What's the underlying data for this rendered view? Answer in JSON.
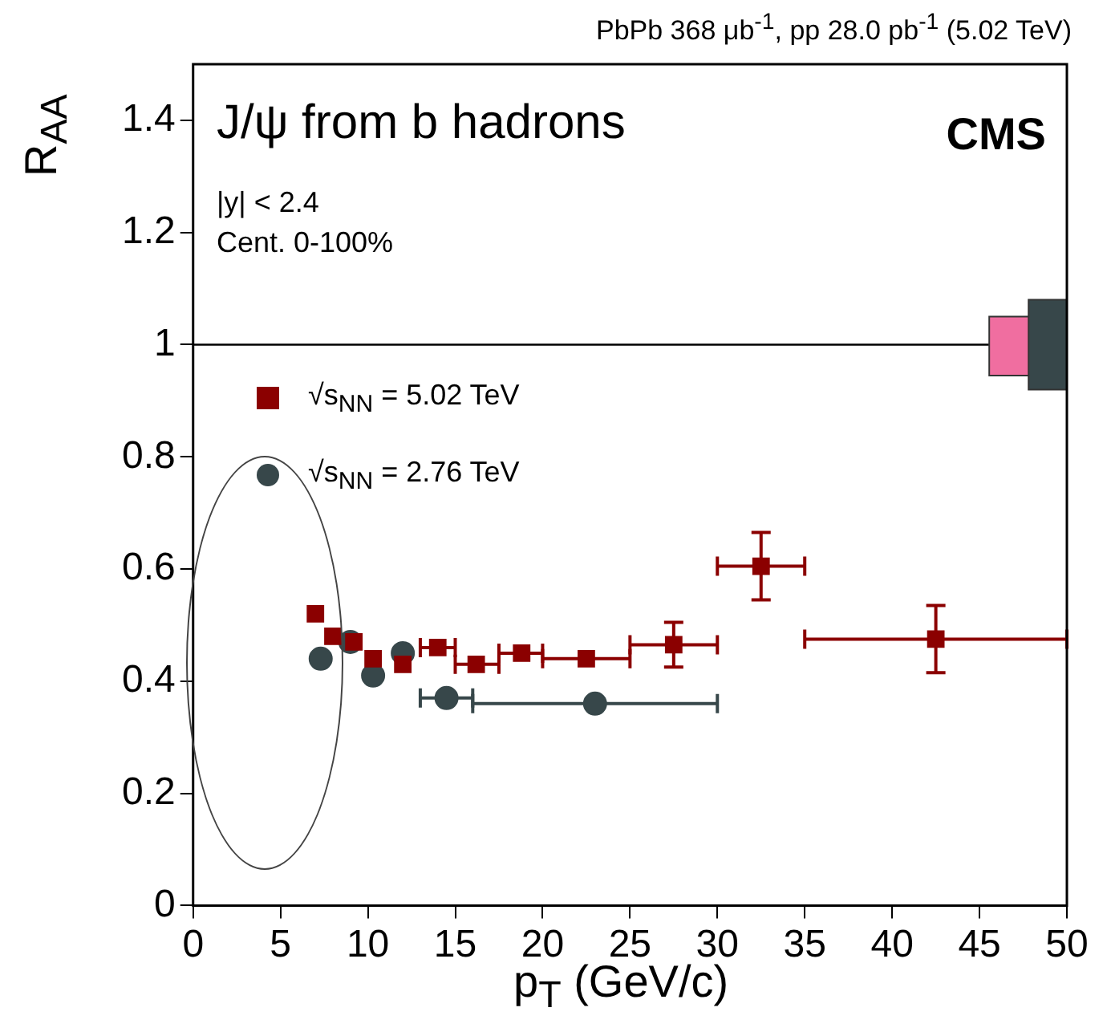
{
  "chart_data": {
    "type": "scatter",
    "title": "PbPb 368 μb$^{-1}$, pp 28.0 pb$^{-1}$ (5.02 TeV)",
    "xlabel": "p$_{T}$ (GeV/c)",
    "ylabel": "R$_{AA}$",
    "annotations": [
      "J/ψ from b hadrons",
      "|y| < 2.4",
      "Cent. 0-100%",
      "CMS"
    ],
    "xlim": [
      0,
      50
    ],
    "xticks": [
      0,
      5,
      10,
      15,
      20,
      25,
      30,
      35,
      40,
      45,
      50
    ],
    "ylim": [
      0,
      1.5
    ],
    "yticks": [
      0,
      0.2,
      0.4,
      0.6,
      0.8,
      1,
      1.2,
      1.4
    ],
    "grid": false,
    "legend": "top left",
    "ref_lines": [
      {
        "axis": "y",
        "value": 1,
        "color": "#000000"
      }
    ],
    "series": [
      {
        "name": "√s$_{NN}$ = 5.02 TeV",
        "color": "#8b0000",
        "marker": "square",
        "x": [
          7,
          8,
          9.2,
          10.3,
          12,
          14,
          16.2,
          18.8,
          22.5,
          27.5,
          32.5,
          42.5
        ],
        "values": [
          0.52,
          0.48,
          0.47,
          0.44,
          0.43,
          0.46,
          0.43,
          0.45,
          0.44,
          0.465,
          0.605,
          0.475
        ],
        "xerrors": [
          null,
          null,
          null,
          null,
          null,
          [
            13,
            15
          ],
          [
            15,
            17.5
          ],
          [
            17.5,
            20
          ],
          [
            20,
            25
          ],
          [
            25,
            30
          ],
          [
            30,
            35
          ],
          [
            35,
            50
          ]
        ],
        "errors": [
          null,
          null,
          null,
          null,
          null,
          null,
          null,
          null,
          null,
          0.04,
          0.06,
          0.06
        ]
      },
      {
        "name": "√s$_{NN}$ = 2.76 TeV",
        "color": "#37474a",
        "marker": "circle",
        "x": [
          7.3,
          9,
          10.3,
          12,
          14.5,
          23
        ],
        "values": [
          0.44,
          0.47,
          0.41,
          0.45,
          0.37,
          0.36
        ],
        "xerrors": [
          null,
          null,
          null,
          null,
          [
            13,
            16
          ],
          [
            16,
            30
          ]
        ],
        "errors": [
          null,
          null,
          null,
          null,
          null,
          null
        ]
      },
      {
        "type": "bar",
        "color": "#f06ea0",
        "x": [
          46.75
        ],
        "base": [
          0.945
        ],
        "values": [
          0.105
        ]
      },
      {
        "type": "bar",
        "color": "#37474a",
        "x": [
          49
        ],
        "base": [
          0.92
        ],
        "values": [
          0.16
        ]
      }
    ]
  }
}
